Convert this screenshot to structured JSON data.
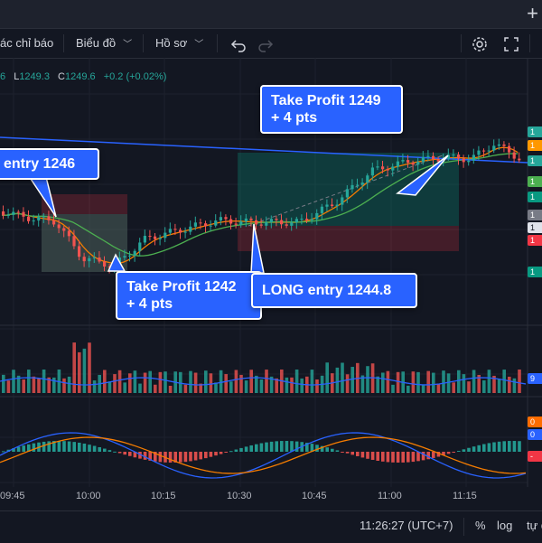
{
  "toolbar": {
    "indicators_label": "ác chỉ báo",
    "chart_type_label": "Biểu đồ",
    "profile_label": "Hồ sơ"
  },
  "ohlc": {
    "open_tail": "6",
    "low_label": "L",
    "low_value": "1249.3",
    "close_label": "C",
    "close_value": "1249.6",
    "change": "+0.2 (+0.02%)"
  },
  "annotations": {
    "take_profit_1249_line1": "Take Profit 1249",
    "take_profit_1249_line2": "+ 4 pts",
    "entry_1246": "entry 1246",
    "take_profit_1242_line1": "Take Profit 1242",
    "take_profit_1242_line2": "+ 4 pts",
    "long_entry": "LONG entry 1244.8"
  },
  "price_tags": [
    {
      "text": "1",
      "color": "#26a69a"
    },
    {
      "text": "1",
      "color": "#ff9800"
    },
    {
      "text": "1",
      "color": "#26a69a"
    },
    {
      "text": "1",
      "color": "#4caf50"
    },
    {
      "text": "1",
      "color": "#089981"
    },
    {
      "text": "1",
      "color": "#787b86"
    },
    {
      "text": "1",
      "color": "#e0e3eb"
    },
    {
      "text": "1",
      "color": "#f23645"
    },
    {
      "text": "1",
      "color": "#089981"
    }
  ],
  "volume_tag": {
    "text": "9",
    "color": "#2962ff"
  },
  "macd_tags": [
    {
      "text": "0",
      "color": "#ff6d00"
    },
    {
      "text": "0",
      "color": "#2962ff"
    },
    {
      "text": "-",
      "color": "#f23645"
    }
  ],
  "time_axis": [
    "09:45",
    "10:00",
    "10:15",
    "10:30",
    "10:45",
    "11:00",
    "11:15"
  ],
  "bottom_bar": {
    "clock": "11:26:27 (UTC+7)",
    "percent_label": "%",
    "log_label": "log",
    "auto_label": "tự đ"
  },
  "colors": {
    "up": "#26a69a",
    "down": "#ef5350",
    "accent": "#2962ff",
    "ema_orange": "#f57c00",
    "sma_green": "#4caf50",
    "trendline": "#2962ff"
  }
}
